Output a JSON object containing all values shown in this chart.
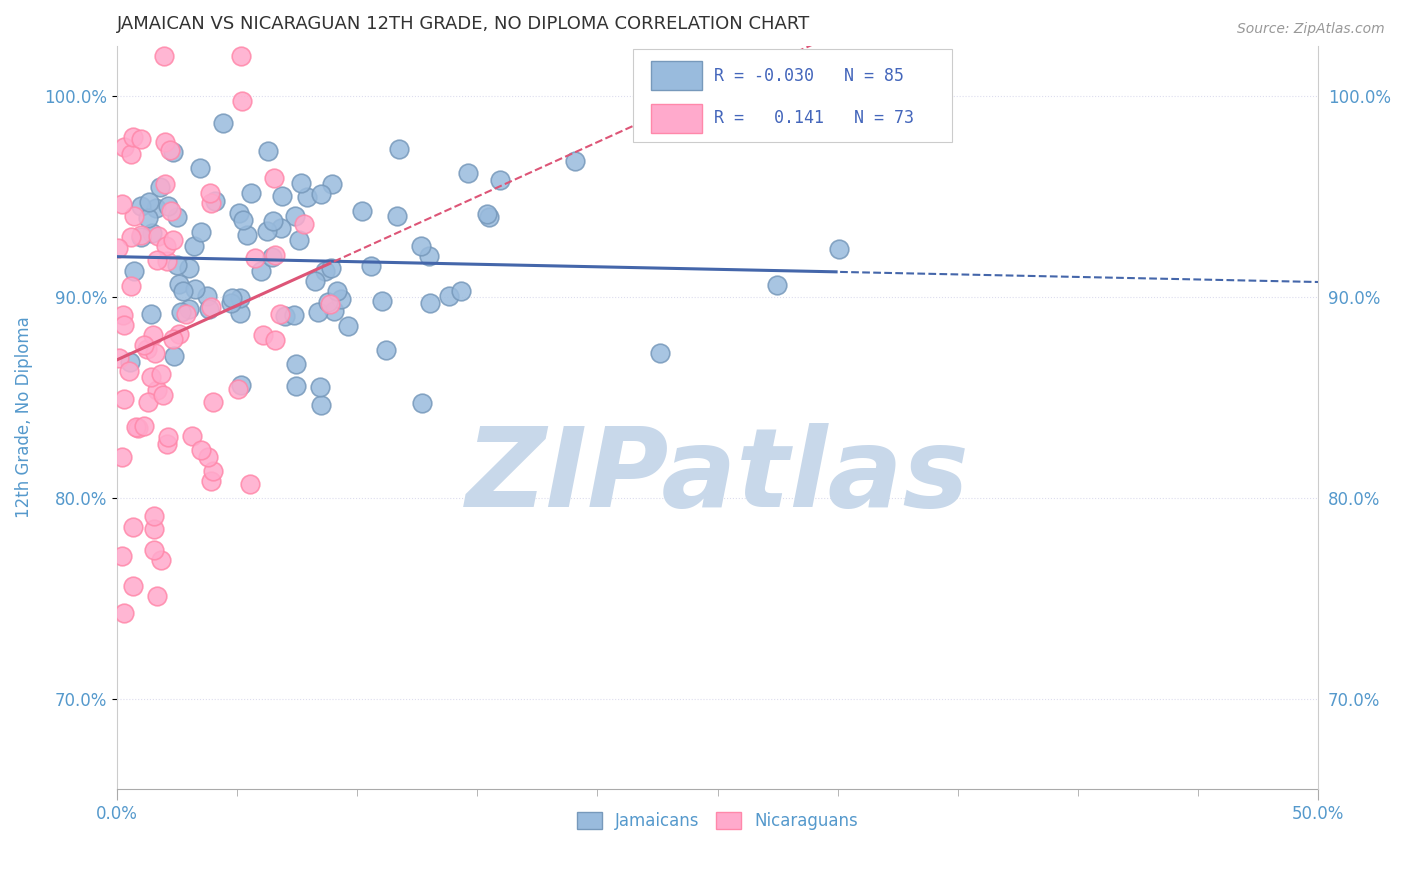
{
  "title": "JAMAICAN VS NICARAGUAN 12TH GRADE, NO DIPLOMA CORRELATION CHART",
  "source": "Source: ZipAtlas.com",
  "xlabel_jamaicans": "Jamaicans",
  "xlabel_nicaraguans": "Nicaraguans",
  "ylabel": "12th Grade, No Diploma",
  "xlim": [
    0.0,
    0.5
  ],
  "ylim": [
    0.655,
    1.025
  ],
  "yticks": [
    0.7,
    0.8,
    0.9,
    1.0
  ],
  "ytick_labels": [
    "70.0%",
    "80.0%",
    "90.0%",
    "100.0%"
  ],
  "xticks_major": [
    0.0,
    0.5
  ],
  "xtick_major_labels": [
    "0.0%",
    "50.0%"
  ],
  "xticks_minor": [
    0.05,
    0.1,
    0.15,
    0.2,
    0.25,
    0.3,
    0.35,
    0.4,
    0.45
  ],
  "jamaican_R": -0.03,
  "jamaican_N": 85,
  "nicaraguan_R": 0.141,
  "nicaraguan_N": 73,
  "blue_color": "#99BBDD",
  "pink_color": "#FFAACC",
  "blue_edge_color": "#7799BB",
  "pink_edge_color": "#FF88AA",
  "blue_line_color": "#4466AA",
  "pink_line_color": "#DD5577",
  "watermark_color": "#C8D8EA",
  "background_color": "#FFFFFF",
  "title_color": "#333333",
  "axis_label_color": "#5599CC",
  "tick_label_color": "#5599CC",
  "legend_R_color": "#4466BB",
  "grid_color": "#DDDDEE",
  "seed_jamaican": 42,
  "seed_nicaraguan": 123
}
